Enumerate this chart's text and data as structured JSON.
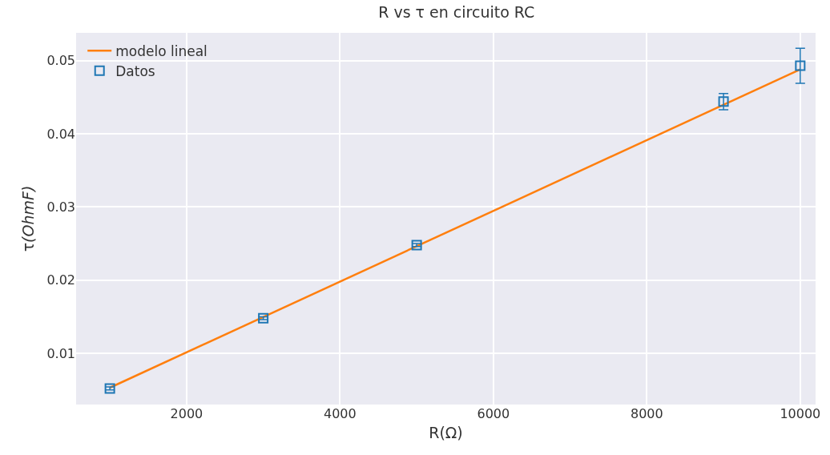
{
  "chart_data": {
    "type": "scatter",
    "title": "R vs τ en circuito RC",
    "xlabel": "R(Ω)",
    "ylabel": "τ(OhmF)",
    "series": [
      {
        "name": "modelo lineal",
        "type": "line",
        "color": "#ff7f0e",
        "x": [
          1000,
          10000
        ],
        "values": [
          0.0053,
          0.0488
        ],
        "marker": "none",
        "line_style": "solid"
      },
      {
        "name": "Datos",
        "color": "#1f77b4",
        "x": [
          1000,
          3000,
          5000,
          9000,
          10000
        ],
        "values": [
          0.0052,
          0.0148,
          0.0248,
          0.0444,
          0.0493
        ],
        "errors": [
          0.0002,
          0.0002,
          0.0002,
          0.0011,
          0.0024
        ],
        "marker": "square"
      }
    ],
    "xlim": [
      560,
      10200
    ],
    "ylim": [
      0.003,
      0.0538
    ],
    "xticks": [
      2000,
      4000,
      6000,
      8000,
      10000
    ],
    "yticks": [
      0.01,
      0.02,
      0.03,
      0.04,
      0.05
    ],
    "grid": true,
    "legend": "top left"
  }
}
